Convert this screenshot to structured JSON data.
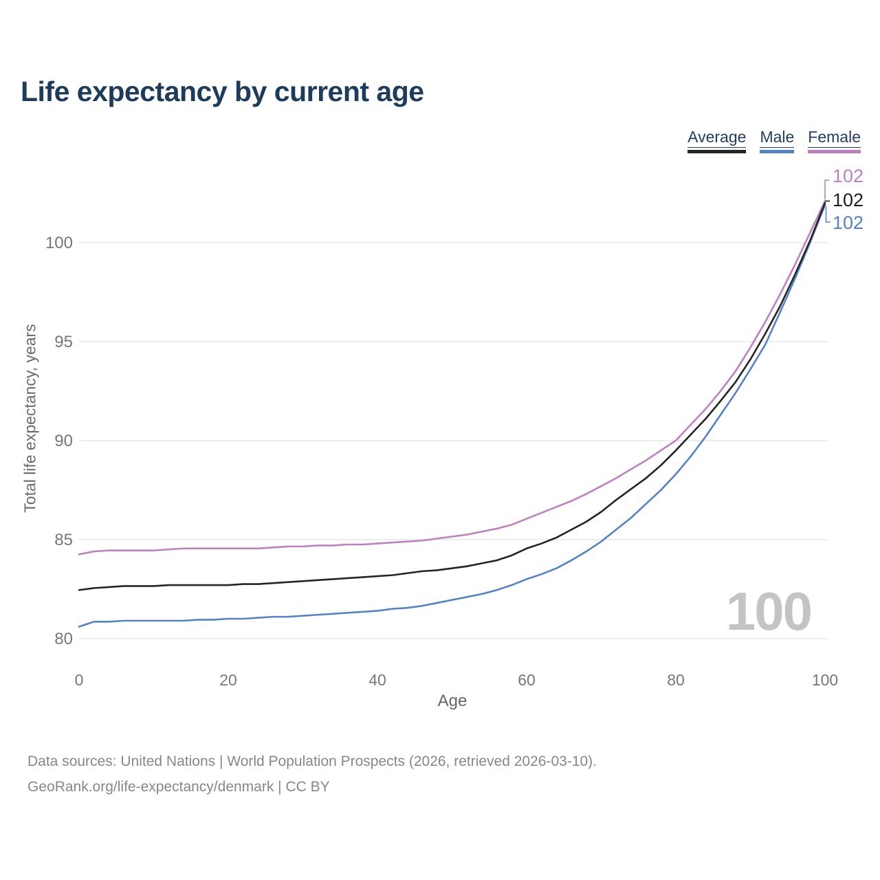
{
  "header": {
    "title": "Life expectancy by current age"
  },
  "legend": {
    "items": [
      {
        "label": "Average",
        "color": "#242424"
      },
      {
        "label": "Male",
        "color": "#5282c8"
      },
      {
        "label": "Female",
        "color": "#bf80c1"
      }
    ]
  },
  "end_labels": [
    {
      "series": "Female",
      "value": "102",
      "color": "#bf80c1"
    },
    {
      "series": "Average",
      "value": "102",
      "color": "#1c1c1c"
    },
    {
      "series": "Male",
      "value": "102",
      "color": "#5282c8"
    }
  ],
  "watermark": "100",
  "footer": {
    "line1": "Data sources: United Nations | World Population Prospects (2026, retrieved 2026-03-10).",
    "line2": "GeoRank.org/life-expectancy/denmark | CC BY"
  },
  "colors": {
    "title_text": "#1d3b5a",
    "grid": "#e4e4e4",
    "tick_text": "#767676",
    "axis_title_text": "#6a6a6a",
    "watermark": "#c4c4c4",
    "footer_text": "#878787"
  },
  "chart_data": {
    "type": "line",
    "title": "Life expectancy by current age",
    "x_label": "Age",
    "y_label": "Total life expectancy, years",
    "x_ticks": [
      0,
      20,
      40,
      60,
      80,
      100
    ],
    "y_ticks": [
      80,
      85,
      90,
      95,
      100
    ],
    "xlim": [
      0,
      100
    ],
    "ylim": [
      77.9,
      102.2
    ],
    "grid": "horizontal-only",
    "legend_position": "top-right",
    "x": [
      0,
      2,
      4,
      6,
      8,
      10,
      12,
      14,
      16,
      18,
      20,
      22,
      24,
      26,
      28,
      30,
      32,
      34,
      36,
      38,
      40,
      42,
      44,
      46,
      48,
      50,
      52,
      54,
      56,
      58,
      60,
      62,
      64,
      66,
      68,
      70,
      72,
      74,
      76,
      78,
      80,
      82,
      84,
      86,
      88,
      90,
      92,
      94,
      96,
      98,
      100
    ],
    "series": [
      {
        "name": "Male",
        "color": "#5282c8",
        "end_label": "102",
        "values": [
          80.6,
          80.85,
          80.85,
          80.9,
          80.9,
          80.9,
          80.9,
          80.9,
          80.95,
          80.95,
          81.0,
          81.0,
          81.05,
          81.1,
          81.1,
          81.15,
          81.2,
          81.25,
          81.3,
          81.35,
          81.4,
          81.5,
          81.55,
          81.65,
          81.8,
          81.95,
          82.1,
          82.25,
          82.45,
          82.7,
          83.0,
          83.25,
          83.55,
          83.95,
          84.4,
          84.9,
          85.5,
          86.1,
          86.8,
          87.5,
          88.3,
          89.2,
          90.2,
          91.3,
          92.4,
          93.6,
          94.85,
          96.5,
          98.2,
          100.0,
          101.9
        ]
      },
      {
        "name": "Female",
        "color": "#bf80c1",
        "end_label": "102",
        "values": [
          84.25,
          84.4,
          84.45,
          84.45,
          84.45,
          84.45,
          84.5,
          84.55,
          84.55,
          84.55,
          84.55,
          84.55,
          84.55,
          84.6,
          84.65,
          84.65,
          84.7,
          84.7,
          84.75,
          84.75,
          84.8,
          84.85,
          84.9,
          84.95,
          85.05,
          85.15,
          85.25,
          85.4,
          85.55,
          85.75,
          86.05,
          86.35,
          86.65,
          86.95,
          87.3,
          87.7,
          88.1,
          88.55,
          89.0,
          89.5,
          90.0,
          90.8,
          91.6,
          92.5,
          93.5,
          94.7,
          96.0,
          97.4,
          98.9,
          100.5,
          102.1
        ]
      },
      {
        "name": "Average",
        "color": "#242424",
        "end_label": "102",
        "values": [
          82.45,
          82.55,
          82.6,
          82.65,
          82.65,
          82.65,
          82.7,
          82.7,
          82.7,
          82.7,
          82.7,
          82.75,
          82.75,
          82.8,
          82.85,
          82.9,
          82.95,
          83.0,
          83.05,
          83.1,
          83.15,
          83.2,
          83.3,
          83.4,
          83.45,
          83.55,
          83.65,
          83.8,
          83.95,
          84.2,
          84.55,
          84.8,
          85.1,
          85.5,
          85.9,
          86.4,
          87.0,
          87.55,
          88.1,
          88.75,
          89.5,
          90.3,
          91.1,
          92.0,
          92.95,
          94.1,
          95.4,
          96.8,
          98.4,
          100.1,
          102.0
        ]
      }
    ]
  }
}
